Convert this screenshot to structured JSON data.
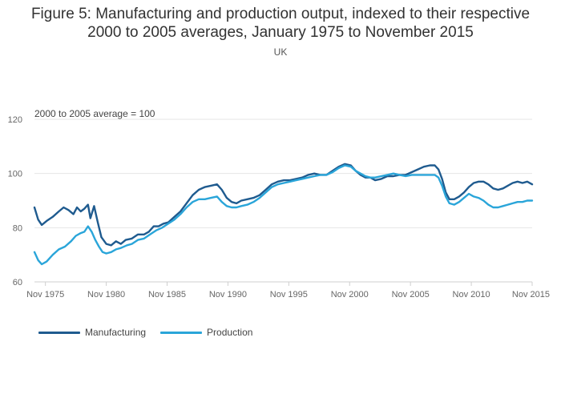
{
  "chart_data": {
    "type": "line",
    "title_lines": [
      "Figure 5: Manufacturing and production output, indexed to their respective",
      "2000 to 2005 averages, January 1975 to November 2015"
    ],
    "subtitle": "UK",
    "annotation": "2000 to 2005 average = 100",
    "xlabel": "",
    "ylabel": "",
    "ylim": [
      60,
      120
    ],
    "xlim": [
      1975.0,
      2015.9
    ],
    "yticks": [
      60,
      80,
      100,
      120
    ],
    "xticks": [
      {
        "value": 1975.9,
        "label": "Nov 1975"
      },
      {
        "value": 1980.9,
        "label": "Nov 1980"
      },
      {
        "value": 1985.9,
        "label": "Nov 1985"
      },
      {
        "value": 1990.9,
        "label": "Nov 1990"
      },
      {
        "value": 1995.9,
        "label": "Nov 1995"
      },
      {
        "value": 2000.9,
        "label": "Nov 2000"
      },
      {
        "value": 2005.9,
        "label": "Nov 2005"
      },
      {
        "value": 2010.9,
        "label": "Nov 2010"
      },
      {
        "value": 2015.9,
        "label": "Nov 2015"
      }
    ],
    "grid": true,
    "legend_position": "bottom-left",
    "series": [
      {
        "name": "Manufacturing",
        "color": "#1f5b8f",
        "points": [
          [
            1975.0,
            87.5
          ],
          [
            1975.3,
            83
          ],
          [
            1975.6,
            81
          ],
          [
            1976.0,
            82.5
          ],
          [
            1976.5,
            84
          ],
          [
            1977.0,
            86
          ],
          [
            1977.4,
            87.5
          ],
          [
            1977.8,
            86.5
          ],
          [
            1978.2,
            85
          ],
          [
            1978.5,
            87.5
          ],
          [
            1978.8,
            86
          ],
          [
            1979.1,
            87
          ],
          [
            1979.4,
            88.5
          ],
          [
            1979.6,
            83.5
          ],
          [
            1979.9,
            88
          ],
          [
            1980.2,
            82
          ],
          [
            1980.5,
            76.5
          ],
          [
            1980.9,
            74
          ],
          [
            1981.3,
            73.5
          ],
          [
            1981.7,
            75
          ],
          [
            1982.1,
            74
          ],
          [
            1982.5,
            75.5
          ],
          [
            1983.0,
            76
          ],
          [
            1983.5,
            77.5
          ],
          [
            1984.0,
            77.5
          ],
          [
            1984.4,
            78.5
          ],
          [
            1984.8,
            80.5
          ],
          [
            1985.2,
            80.5
          ],
          [
            1985.6,
            81.5
          ],
          [
            1986.0,
            82
          ],
          [
            1986.5,
            84
          ],
          [
            1987.0,
            86
          ],
          [
            1987.5,
            89
          ],
          [
            1988.0,
            92
          ],
          [
            1988.5,
            94
          ],
          [
            1989.0,
            95
          ],
          [
            1989.5,
            95.5
          ],
          [
            1990.0,
            96
          ],
          [
            1990.4,
            94
          ],
          [
            1990.8,
            91
          ],
          [
            1991.2,
            89.5
          ],
          [
            1991.6,
            89
          ],
          [
            1992.0,
            90
          ],
          [
            1992.5,
            90.5
          ],
          [
            1993.0,
            91
          ],
          [
            1993.5,
            92
          ],
          [
            1994.0,
            94
          ],
          [
            1994.5,
            96
          ],
          [
            1995.0,
            97
          ],
          [
            1995.5,
            97.5
          ],
          [
            1996.0,
            97.5
          ],
          [
            1996.5,
            98
          ],
          [
            1997.0,
            98.5
          ],
          [
            1997.5,
            99.5
          ],
          [
            1998.0,
            100
          ],
          [
            1998.5,
            99.5
          ],
          [
            1999.0,
            99.5
          ],
          [
            1999.5,
            101
          ],
          [
            2000.0,
            102.5
          ],
          [
            2000.5,
            103.5
          ],
          [
            2001.0,
            103
          ],
          [
            2001.4,
            101
          ],
          [
            2001.8,
            99.5
          ],
          [
            2002.2,
            98.5
          ],
          [
            2002.6,
            98.5
          ],
          [
            2003.0,
            97.5
          ],
          [
            2003.5,
            98
          ],
          [
            2004.0,
            99
          ],
          [
            2004.5,
            99
          ],
          [
            2005.0,
            99.5
          ],
          [
            2005.5,
            99.5
          ],
          [
            2006.0,
            100.5
          ],
          [
            2006.5,
            101.5
          ],
          [
            2007.0,
            102.5
          ],
          [
            2007.5,
            103
          ],
          [
            2007.9,
            103
          ],
          [
            2008.2,
            101.5
          ],
          [
            2008.5,
            98
          ],
          [
            2008.8,
            93
          ],
          [
            2009.1,
            90.5
          ],
          [
            2009.5,
            90.5
          ],
          [
            2009.9,
            91.5
          ],
          [
            2010.3,
            93
          ],
          [
            2010.7,
            95
          ],
          [
            2011.1,
            96.5
          ],
          [
            2011.5,
            97
          ],
          [
            2011.9,
            97
          ],
          [
            2012.3,
            96
          ],
          [
            2012.7,
            94.5
          ],
          [
            2013.1,
            94
          ],
          [
            2013.5,
            94.5
          ],
          [
            2013.9,
            95.5
          ],
          [
            2014.3,
            96.5
          ],
          [
            2014.7,
            97
          ],
          [
            2015.1,
            96.5
          ],
          [
            2015.5,
            97
          ],
          [
            2015.9,
            96
          ]
        ]
      },
      {
        "name": "Production",
        "color": "#2aa5d9",
        "points": [
          [
            1975.0,
            71
          ],
          [
            1975.3,
            68
          ],
          [
            1975.6,
            66.5
          ],
          [
            1976.0,
            67.5
          ],
          [
            1976.5,
            70
          ],
          [
            1977.0,
            72
          ],
          [
            1977.5,
            73
          ],
          [
            1978.0,
            75
          ],
          [
            1978.4,
            77
          ],
          [
            1978.8,
            78
          ],
          [
            1979.1,
            78.5
          ],
          [
            1979.4,
            80.5
          ],
          [
            1979.7,
            78.5
          ],
          [
            1980.0,
            75.5
          ],
          [
            1980.3,
            73
          ],
          [
            1980.6,
            71
          ],
          [
            1980.9,
            70.5
          ],
          [
            1981.3,
            71
          ],
          [
            1981.7,
            72
          ],
          [
            1982.1,
            72.5
          ],
          [
            1982.6,
            73.5
          ],
          [
            1983.0,
            74
          ],
          [
            1983.5,
            75.5
          ],
          [
            1984.0,
            76
          ],
          [
            1984.5,
            77.5
          ],
          [
            1985.0,
            79
          ],
          [
            1985.5,
            80
          ],
          [
            1986.0,
            81.5
          ],
          [
            1986.5,
            83
          ],
          [
            1987.0,
            85
          ],
          [
            1987.5,
            87.5
          ],
          [
            1988.0,
            89.5
          ],
          [
            1988.5,
            90.5
          ],
          [
            1989.0,
            90.5
          ],
          [
            1989.5,
            91
          ],
          [
            1990.0,
            91.5
          ],
          [
            1990.4,
            89.5
          ],
          [
            1990.8,
            88
          ],
          [
            1991.2,
            87.5
          ],
          [
            1991.6,
            87.5
          ],
          [
            1992.0,
            88
          ],
          [
            1992.5,
            88.5
          ],
          [
            1993.0,
            89.5
          ],
          [
            1993.5,
            91
          ],
          [
            1994.0,
            93
          ],
          [
            1994.5,
            95
          ],
          [
            1995.0,
            96
          ],
          [
            1995.5,
            96.5
          ],
          [
            1996.0,
            97
          ],
          [
            1996.5,
            97.5
          ],
          [
            1997.0,
            98
          ],
          [
            1997.5,
            98.5
          ],
          [
            1998.0,
            99
          ],
          [
            1998.5,
            99.5
          ],
          [
            1999.0,
            99.5
          ],
          [
            1999.5,
            100.5
          ],
          [
            2000.0,
            102
          ],
          [
            2000.5,
            103
          ],
          [
            2001.0,
            102.5
          ],
          [
            2001.4,
            101
          ],
          [
            2001.8,
            100
          ],
          [
            2002.2,
            99
          ],
          [
            2002.6,
            98.5
          ],
          [
            2003.0,
            98.5
          ],
          [
            2003.5,
            99
          ],
          [
            2004.0,
            99.5
          ],
          [
            2004.5,
            100
          ],
          [
            2005.0,
            99.5
          ],
          [
            2005.5,
            99
          ],
          [
            2006.0,
            99.5
          ],
          [
            2006.5,
            99.5
          ],
          [
            2007.0,
            99.5
          ],
          [
            2007.5,
            99.5
          ],
          [
            2007.9,
            99.5
          ],
          [
            2008.2,
            98.5
          ],
          [
            2008.5,
            95.5
          ],
          [
            2008.8,
            91.5
          ],
          [
            2009.1,
            89
          ],
          [
            2009.5,
            88.5
          ],
          [
            2009.9,
            89.5
          ],
          [
            2010.3,
            91
          ],
          [
            2010.7,
            92.5
          ],
          [
            2011.1,
            91.5
          ],
          [
            2011.5,
            91
          ],
          [
            2011.9,
            90
          ],
          [
            2012.3,
            88.5
          ],
          [
            2012.7,
            87.5
          ],
          [
            2013.1,
            87.5
          ],
          [
            2013.5,
            88
          ],
          [
            2013.9,
            88.5
          ],
          [
            2014.3,
            89
          ],
          [
            2014.7,
            89.5
          ],
          [
            2015.1,
            89.5
          ],
          [
            2015.5,
            90
          ],
          [
            2015.9,
            90
          ]
        ]
      }
    ]
  }
}
